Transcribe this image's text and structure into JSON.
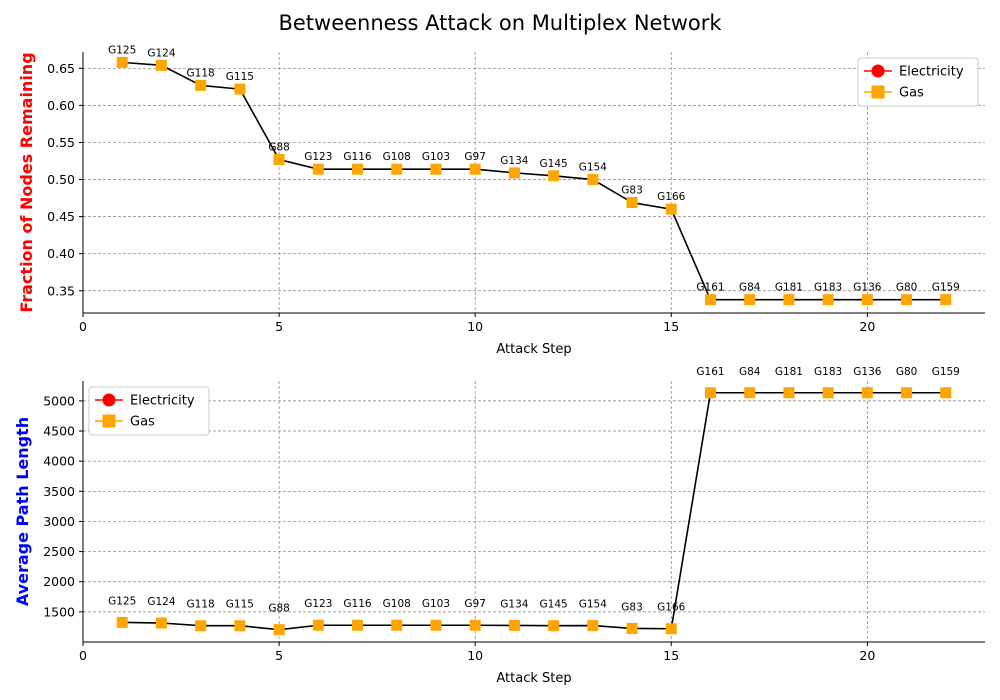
{
  "figure_title": "Betweenness Attack on Multiplex Network",
  "chart_data": [
    {
      "type": "line",
      "title": "",
      "xlabel": "Attack Step",
      "ylabel": "Fraction of Nodes Remaining",
      "ylabel_color": "#ff0000",
      "xlim": [
        0,
        23
      ],
      "ylim": [
        0.32,
        0.672
      ],
      "xticks": [
        0,
        5,
        10,
        15,
        20
      ],
      "yticks": [
        0.35,
        0.4,
        0.45,
        0.5,
        0.55,
        0.6,
        0.65
      ],
      "ytick_labels": [
        "0.35",
        "0.40",
        "0.45",
        "0.50",
        "0.55",
        "0.60",
        "0.65"
      ],
      "grid": true,
      "legend_position": "top-right",
      "legend": [
        {
          "name": "Electricity",
          "color": "#ff0000",
          "marker": "circle"
        },
        {
          "name": "Gas",
          "color": "#ffa500",
          "marker": "square"
        }
      ],
      "line_color": "#000000",
      "marker_color": "#ffa500",
      "x": [
        1,
        2,
        3,
        4,
        5,
        6,
        7,
        8,
        9,
        10,
        11,
        12,
        13,
        14,
        15,
        16,
        17,
        18,
        19,
        20,
        21,
        22
      ],
      "y": [
        0.658,
        0.654,
        0.627,
        0.622,
        0.527,
        0.514,
        0.514,
        0.514,
        0.514,
        0.514,
        0.509,
        0.505,
        0.5,
        0.469,
        0.46,
        0.338,
        0.338,
        0.338,
        0.338,
        0.338,
        0.338,
        0.338
      ],
      "point_labels": [
        "G125",
        "G124",
        "G118",
        "G115",
        "G88",
        "G123",
        "G116",
        "G108",
        "G103",
        "G97",
        "G134",
        "G145",
        "G154",
        "G83",
        "G166",
        "G161",
        "G84",
        "G181",
        "G183",
        "G136",
        "G80",
        "G159"
      ]
    },
    {
      "type": "line",
      "title": "",
      "xlabel": "Attack Step",
      "ylabel": "Average Path Length",
      "ylabel_color": "#0000ff",
      "xlim": [
        0,
        23
      ],
      "ylim": [
        1000,
        5330
      ],
      "xticks": [
        0,
        5,
        10,
        15,
        20
      ],
      "yticks": [
        1500,
        2000,
        2500,
        3000,
        3500,
        4000,
        4500,
        5000
      ],
      "ytick_labels": [
        "1500",
        "2000",
        "2500",
        "3000",
        "3500",
        "4000",
        "4500",
        "5000"
      ],
      "grid": true,
      "legend_position": "top-left",
      "legend": [
        {
          "name": "Electricity",
          "color": "#ff0000",
          "marker": "circle"
        },
        {
          "name": "Gas",
          "color": "#ffa500",
          "marker": "square"
        }
      ],
      "line_color": "#000000",
      "marker_color": "#ffa500",
      "x": [
        1,
        2,
        3,
        4,
        5,
        6,
        7,
        8,
        9,
        10,
        11,
        12,
        13,
        14,
        15,
        16,
        17,
        18,
        19,
        20,
        21,
        22
      ],
      "y": [
        1325,
        1315,
        1270,
        1270,
        1205,
        1278,
        1278,
        1278,
        1278,
        1278,
        1275,
        1270,
        1272,
        1225,
        1220,
        5135,
        5135,
        5135,
        5135,
        5135,
        5135,
        5135
      ],
      "point_labels": [
        "G125",
        "G124",
        "G118",
        "G115",
        "G88",
        "G123",
        "G116",
        "G108",
        "G103",
        "G97",
        "G134",
        "G145",
        "G154",
        "G83",
        "G166",
        "G161",
        "G84",
        "G181",
        "G183",
        "G136",
        "G80",
        "G159"
      ]
    }
  ]
}
